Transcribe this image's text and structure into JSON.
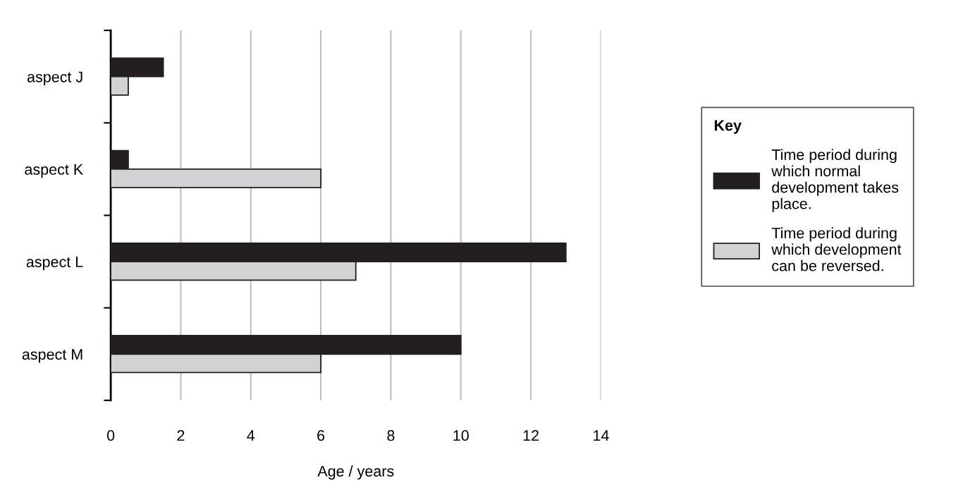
{
  "chart_data": {
    "type": "bar",
    "orientation": "horizontal",
    "xlabel": "Age / years",
    "legend_title": "Key",
    "categories": [
      "aspect J",
      "aspect K",
      "aspect L",
      "aspect M"
    ],
    "series": [
      {
        "name": "Time period during\nwhich normal\ndevelopment takes\nplace.",
        "color": "#231f20",
        "values": [
          1.5,
          0.5,
          13,
          10
        ]
      },
      {
        "name": "Time period during\nwhich development\ncan be reversed.",
        "color": "#d1d2d4",
        "values": [
          0.5,
          6,
          7,
          6
        ]
      }
    ],
    "xlim": [
      0,
      14
    ],
    "xticks": [
      0,
      2,
      4,
      6,
      8,
      10,
      12,
      14
    ],
    "grid": "x",
    "legend": "right"
  }
}
